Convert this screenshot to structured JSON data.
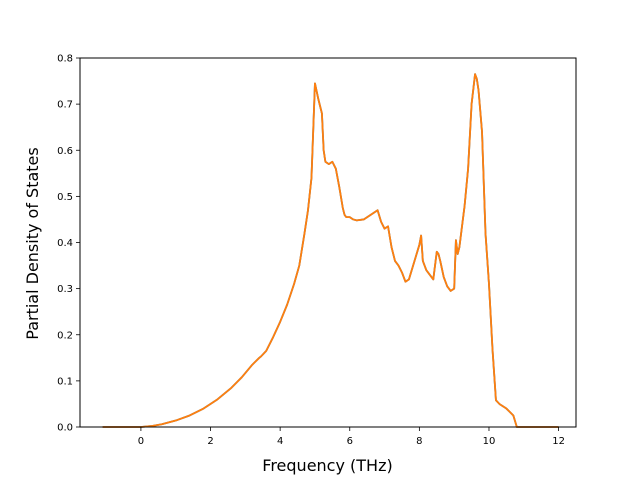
{
  "chart_data": {
    "type": "line",
    "title": "",
    "xlabel": "Frequency (THz)",
    "ylabel": "Partial Density of States",
    "xlim": [
      -1.75,
      12.5
    ],
    "ylim": [
      0.0,
      0.8
    ],
    "xticks": [
      0,
      2,
      4,
      6,
      8,
      10,
      12
    ],
    "xtick_labels": [
      "0",
      "2",
      "4",
      "6",
      "8",
      "10",
      "12"
    ],
    "yticks": [
      0.0,
      0.1,
      0.2,
      0.3,
      0.4,
      0.5,
      0.6,
      0.7,
      0.8
    ],
    "ytick_labels": [
      "0.0",
      "0.1",
      "0.2",
      "0.3",
      "0.4",
      "0.5",
      "0.6",
      "0.7",
      "0.8"
    ],
    "grid": false,
    "legend": "none",
    "series": [
      {
        "color": "#1f77b4",
        "x": [
          -1.1,
          -0.5,
          0.0,
          0.3,
          0.6,
          1.0,
          1.4,
          1.8,
          2.2,
          2.6,
          2.9,
          3.2,
          3.4,
          3.45,
          3.6,
          3.8,
          4.0,
          4.2,
          4.4,
          4.55,
          4.7,
          4.8,
          4.9,
          5.0,
          5.1,
          5.2,
          5.25,
          5.3,
          5.4,
          5.5,
          5.6,
          5.7,
          5.8,
          5.85,
          5.9,
          6.0,
          6.1,
          6.2,
          6.4,
          6.6,
          6.8,
          6.9,
          7.0,
          7.1,
          7.2,
          7.3,
          7.4,
          7.5,
          7.6,
          7.7,
          7.8,
          7.9,
          8.0,
          8.05,
          8.1,
          8.2,
          8.3,
          8.4,
          8.5,
          8.55,
          8.6,
          8.7,
          8.8,
          8.9,
          9.0,
          9.05,
          9.1,
          9.15,
          9.2,
          9.3,
          9.4,
          9.5,
          9.6,
          9.65,
          9.7,
          9.8,
          9.9,
          10.0,
          10.1,
          10.2,
          10.3,
          10.5,
          10.7,
          10.8,
          11.0,
          12.0
        ],
        "y": [
          0.0,
          0.0,
          0.0,
          0.002,
          0.006,
          0.014,
          0.025,
          0.04,
          0.06,
          0.085,
          0.108,
          0.135,
          0.15,
          0.153,
          0.165,
          0.195,
          0.228,
          0.265,
          0.31,
          0.35,
          0.42,
          0.47,
          0.54,
          0.745,
          0.71,
          0.68,
          0.6,
          0.575,
          0.57,
          0.575,
          0.56,
          0.52,
          0.475,
          0.46,
          0.455,
          0.455,
          0.45,
          0.448,
          0.45,
          0.46,
          0.47,
          0.445,
          0.43,
          0.435,
          0.39,
          0.36,
          0.35,
          0.335,
          0.315,
          0.32,
          0.345,
          0.37,
          0.395,
          0.415,
          0.36,
          0.34,
          0.33,
          0.32,
          0.38,
          0.375,
          0.36,
          0.325,
          0.305,
          0.295,
          0.3,
          0.405,
          0.375,
          0.39,
          0.42,
          0.48,
          0.56,
          0.7,
          0.765,
          0.755,
          0.73,
          0.64,
          0.42,
          0.31,
          0.17,
          0.058,
          0.05,
          0.04,
          0.025,
          0.0,
          0.0,
          0.0
        ]
      },
      {
        "color": "#ff7f0e",
        "x": [
          -1.1,
          -0.5,
          0.0,
          0.3,
          0.6,
          1.0,
          1.4,
          1.8,
          2.2,
          2.6,
          2.9,
          3.2,
          3.4,
          3.45,
          3.6,
          3.8,
          4.0,
          4.2,
          4.4,
          4.55,
          4.7,
          4.8,
          4.9,
          5.0,
          5.1,
          5.2,
          5.25,
          5.3,
          5.4,
          5.5,
          5.6,
          5.7,
          5.8,
          5.85,
          5.9,
          6.0,
          6.1,
          6.2,
          6.4,
          6.6,
          6.8,
          6.9,
          7.0,
          7.1,
          7.2,
          7.3,
          7.4,
          7.5,
          7.6,
          7.7,
          7.8,
          7.9,
          8.0,
          8.05,
          8.1,
          8.2,
          8.3,
          8.4,
          8.5,
          8.55,
          8.6,
          8.7,
          8.8,
          8.9,
          9.0,
          9.05,
          9.1,
          9.15,
          9.2,
          9.3,
          9.4,
          9.5,
          9.6,
          9.65,
          9.7,
          9.8,
          9.9,
          10.0,
          10.1,
          10.2,
          10.3,
          10.5,
          10.7,
          10.8,
          11.0,
          12.0
        ],
        "y": [
          0.0,
          0.0,
          0.0,
          0.002,
          0.006,
          0.014,
          0.025,
          0.04,
          0.06,
          0.085,
          0.108,
          0.135,
          0.15,
          0.153,
          0.165,
          0.195,
          0.228,
          0.265,
          0.31,
          0.35,
          0.42,
          0.47,
          0.54,
          0.745,
          0.71,
          0.68,
          0.6,
          0.575,
          0.57,
          0.575,
          0.56,
          0.52,
          0.475,
          0.46,
          0.455,
          0.455,
          0.45,
          0.448,
          0.45,
          0.46,
          0.47,
          0.445,
          0.43,
          0.435,
          0.39,
          0.36,
          0.35,
          0.335,
          0.315,
          0.32,
          0.345,
          0.37,
          0.395,
          0.415,
          0.36,
          0.34,
          0.33,
          0.32,
          0.38,
          0.375,
          0.36,
          0.325,
          0.305,
          0.295,
          0.3,
          0.405,
          0.375,
          0.39,
          0.42,
          0.48,
          0.56,
          0.7,
          0.765,
          0.755,
          0.73,
          0.64,
          0.42,
          0.31,
          0.17,
          0.058,
          0.05,
          0.04,
          0.025,
          0.0,
          0.0,
          0.0
        ]
      }
    ]
  }
}
